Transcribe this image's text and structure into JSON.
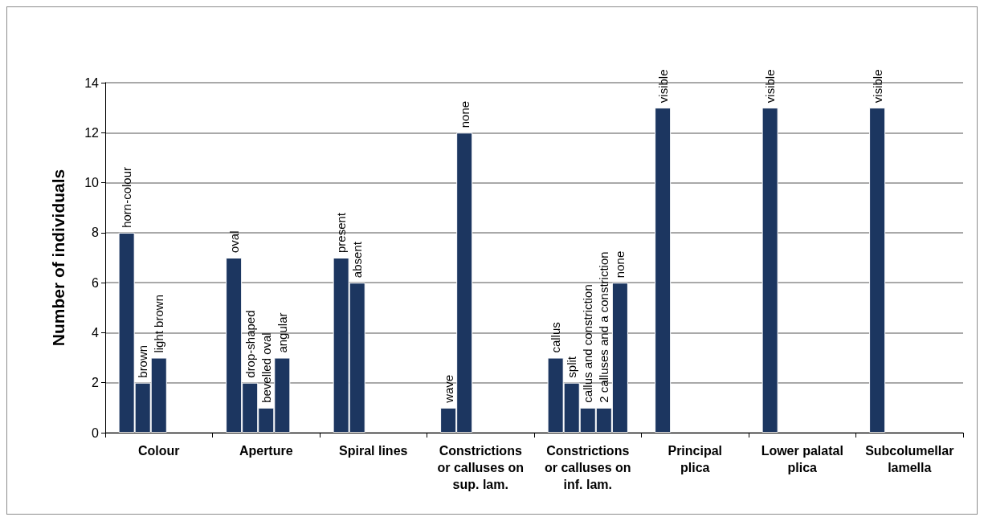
{
  "chart_data": {
    "type": "bar",
    "ylabel": "Number of individuals",
    "categories": [
      "Colour",
      "Aperture",
      "Spiral lines",
      "Constrictions or calluses on sup. lam.",
      "Constrictions or calluses on inf. lam.",
      "Principal plica",
      "Lower palatal plica",
      "Subcolumellar lamella"
    ],
    "series": [
      {
        "color": "#1c3660",
        "values": [
          8,
          7,
          7,
          1,
          3,
          13,
          13,
          13
        ]
      },
      {
        "color": "#1c3660",
        "values": [
          2,
          2,
          6,
          12,
          2,
          null,
          null,
          null
        ]
      },
      {
        "color": "#1c3660",
        "values": [
          3,
          1,
          null,
          null,
          1,
          null,
          null,
          null
        ]
      },
      {
        "color": "#1c3660",
        "values": [
          null,
          3,
          null,
          null,
          1,
          null,
          null,
          null
        ]
      },
      {
        "color": "#1c3660",
        "values": [
          null,
          null,
          null,
          null,
          6,
          null,
          null,
          null
        ]
      }
    ],
    "ylim": [
      0,
      14
    ],
    "yticks": [
      0,
      2,
      4,
      6,
      8,
      10,
      12,
      14
    ],
    "grid": "y",
    "annotations": [
      "horn-colour",
      "brown",
      "light brown",
      "oval",
      "drop-shaped",
      "bevelled oval",
      "angular",
      "present",
      "absent",
      "wave",
      "none",
      "callus",
      "split",
      "callus and constriction",
      "2 calluses and a constriction",
      "none",
      "visible",
      "visible",
      "visible"
    ]
  }
}
